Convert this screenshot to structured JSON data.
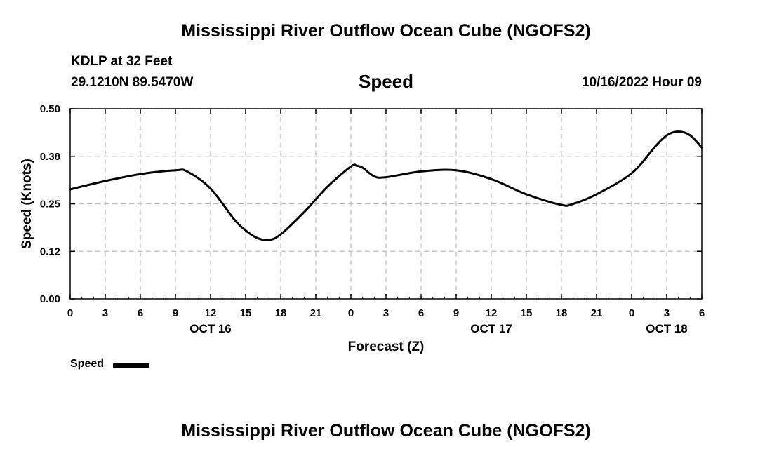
{
  "header": {
    "title": "Mississippi River Outflow Ocean Cube (NGOFS2)",
    "station": "KDLP at 32 Feet",
    "coords": "29.1210N  89.5470W",
    "variable": "Speed",
    "datetime": "10/16/2022 Hour 09"
  },
  "footer": {
    "title": "Mississippi River Outflow Ocean Cube (NGOFS2)"
  },
  "chart_data": {
    "type": "line",
    "title": "Speed",
    "xlabel": "Forecast (Z)",
    "ylabel": "Speed (Knots)",
    "xlim": [
      0,
      54
    ],
    "ylim": [
      0,
      0.5
    ],
    "grid": true,
    "yticks": [
      {
        "value": 0.0,
        "label": "0.00"
      },
      {
        "value": 0.125,
        "label": "0.12"
      },
      {
        "value": 0.25,
        "label": "0.25"
      },
      {
        "value": 0.375,
        "label": "0.38"
      },
      {
        "value": 0.5,
        "label": "0.50"
      }
    ],
    "xticks": [
      {
        "value": 0,
        "label": "0"
      },
      {
        "value": 3,
        "label": "3"
      },
      {
        "value": 6,
        "label": "6"
      },
      {
        "value": 9,
        "label": "9"
      },
      {
        "value": 12,
        "label": "12"
      },
      {
        "value": 15,
        "label": "15"
      },
      {
        "value": 18,
        "label": "18"
      },
      {
        "value": 21,
        "label": "21"
      },
      {
        "value": 24,
        "label": "0"
      },
      {
        "value": 27,
        "label": "3"
      },
      {
        "value": 30,
        "label": "6"
      },
      {
        "value": 33,
        "label": "9"
      },
      {
        "value": 36,
        "label": "12"
      },
      {
        "value": 39,
        "label": "15"
      },
      {
        "value": 42,
        "label": "18"
      },
      {
        "value": 45,
        "label": "21"
      },
      {
        "value": 48,
        "label": "0"
      },
      {
        "value": 51,
        "label": "3"
      },
      {
        "value": 54,
        "label": "6"
      }
    ],
    "day_labels": [
      {
        "value": 12,
        "label": "OCT 16"
      },
      {
        "value": 36,
        "label": "OCT 17"
      },
      {
        "value": 51,
        "label": "OCT 18"
      }
    ],
    "legend": {
      "position": "bottom-left",
      "entries": [
        "Speed"
      ]
    },
    "series": [
      {
        "name": "Speed",
        "x": [
          0,
          3,
          6,
          9,
          10,
          12,
          14,
          15,
          16,
          17,
          18,
          20,
          22,
          24,
          24.5,
          25,
          26,
          27,
          30,
          33,
          36,
          39,
          42,
          43,
          45,
          48,
          50,
          51,
          52,
          53,
          54
        ],
        "y": [
          0.288,
          0.31,
          0.328,
          0.338,
          0.335,
          0.29,
          0.21,
          0.18,
          0.16,
          0.155,
          0.17,
          0.228,
          0.295,
          0.348,
          0.35,
          0.345,
          0.322,
          0.32,
          0.335,
          0.338,
          0.315,
          0.275,
          0.247,
          0.25,
          0.275,
          0.33,
          0.4,
          0.43,
          0.44,
          0.43,
          0.398
        ]
      }
    ]
  }
}
